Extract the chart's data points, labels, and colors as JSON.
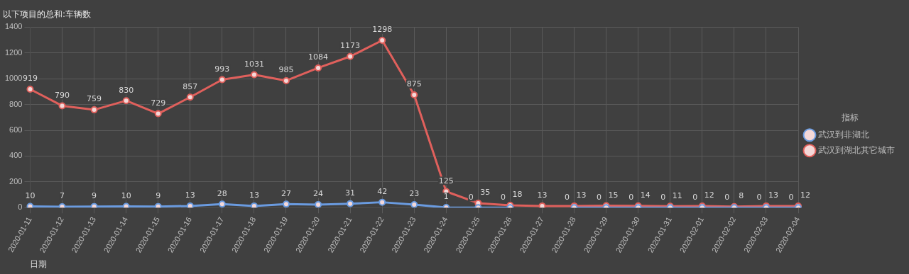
{
  "chart_data": {
    "type": "line",
    "title": "以下项目的总和:车辆数",
    "xlabel": "日期",
    "legend_title": "指标",
    "categories": [
      "2020-01-11",
      "2020-01-12",
      "2020-01-13",
      "2020-01-14",
      "2020-01-15",
      "2020-01-16",
      "2020-01-17",
      "2020-01-18",
      "2020-01-19",
      "2020-01-20",
      "2020-01-21",
      "2020-01-22",
      "2020-01-23",
      "2020-01-24",
      "2020-01-25",
      "2020-01-26",
      "2020-01-27",
      "2020-01-28",
      "2020-01-29",
      "2020-01-30",
      "2020-01-31",
      "2020-02-01",
      "2020-02-02",
      "2020-02-03",
      "2020-02-04"
    ],
    "series": [
      {
        "name": "武汉到非湖北",
        "color": "#6a9be0",
        "values": [
          10,
          7,
          9,
          10,
          9,
          13,
          28,
          13,
          27,
          24,
          31,
          42,
          23,
          1,
          0,
          0,
          null,
          0,
          0,
          0,
          0,
          0,
          0,
          0,
          0
        ]
      },
      {
        "name": "武汉到湖北其它城市",
        "color": "#e0605c",
        "values": [
          919,
          790,
          759,
          830,
          729,
          857,
          993,
          1031,
          985,
          1084,
          1173,
          1298,
          875,
          125,
          35,
          18,
          13,
          13,
          15,
          14,
          11,
          12,
          8,
          13,
          12
        ]
      }
    ],
    "ylim": [
      0,
      1400
    ],
    "yticks": [
      0,
      200,
      400,
      600,
      800,
      {
        "value": 1000,
        "label": "1000"
      },
      {
        "value": 1200,
        "label": "1200"
      },
      {
        "value": 1400,
        "label": "1400"
      }
    ],
    "grid": true,
    "legend": "right",
    "marker": "circle",
    "line_style": "solid",
    "data_labels": true
  }
}
